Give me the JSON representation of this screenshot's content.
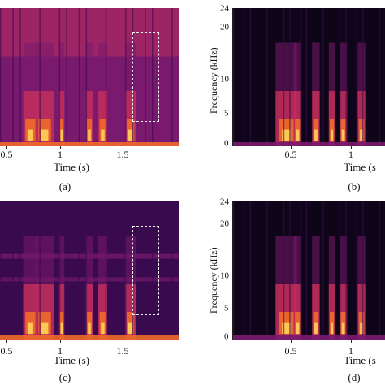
{
  "figure": {
    "panels": [
      {
        "id": "a",
        "caption": "(a)",
        "xlabel": "Time (s)",
        "xticks": [
          "0.5",
          "1",
          "1.5"
        ],
        "ylabel": "",
        "yticks": [],
        "noise": "high",
        "highlight_box": true
      },
      {
        "id": "b",
        "caption": "(b)",
        "xlabel": "Time (s",
        "xticks": [
          "0.5",
          "1"
        ],
        "ylabel": "Frequency (kHz)",
        "yticks": [
          "0",
          "5",
          "10",
          "20",
          "24"
        ],
        "noise": "low",
        "highlight_box": false
      },
      {
        "id": "c",
        "caption": "(c)",
        "xlabel": "Time (s)",
        "xticks": [
          "0.5",
          "1",
          "1.5"
        ],
        "ylabel": "",
        "yticks": [],
        "noise": "medium",
        "highlight_box": true
      },
      {
        "id": "d",
        "caption": "(d)",
        "xlabel": "Time (s",
        "xticks": [
          "0.5",
          "1"
        ],
        "ylabel": "Frequency (kHz)",
        "yticks": [
          "0",
          "5",
          "10",
          "20",
          "24"
        ],
        "noise": "low",
        "highlight_box": false
      }
    ],
    "colormap": [
      "#0e0618",
      "#3a0a4e",
      "#7a1a6e",
      "#c8305a",
      "#f06a2a",
      "#ffd25a"
    ]
  }
}
